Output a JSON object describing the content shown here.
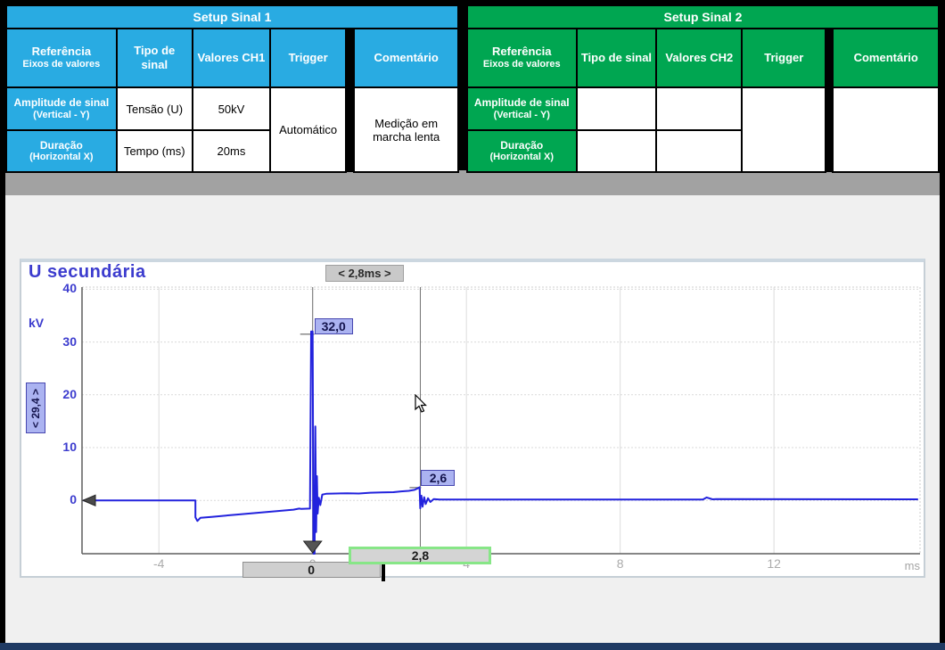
{
  "setup1": {
    "title": "Setup Sinal 1",
    "headers": {
      "ref": "Referência",
      "ref_sub": "Eixos de valores",
      "tipo": "Tipo de sinal",
      "valores": "Valores CH1",
      "trigger": "Trigger",
      "comentario": "Comentário"
    },
    "rows": {
      "amplitude": {
        "label": "Amplitude de sinal",
        "sub": "(Vertical - Y)",
        "tipo": "Tensão (U)",
        "valor": "50kV"
      },
      "duracao": {
        "label": "Duração",
        "sub": "(Horizontal X)",
        "tipo": "Tempo (ms)",
        "valor": "20ms"
      }
    },
    "trigger_value": "Automático",
    "comment_value": "Medição em marcha lenta",
    "accent_color": "#29ABE2"
  },
  "setup2": {
    "title": "Setup Sinal 2",
    "headers": {
      "ref": "Referência",
      "ref_sub": "Eixos de valores",
      "tipo": "Tipo de sinal",
      "valores": "Valores CH2",
      "trigger": "Trigger",
      "comentario": "Comentário"
    },
    "rows": {
      "amplitude": {
        "label": "Amplitude de sinal",
        "sub": "(Vertical - Y)",
        "tipo": "",
        "valor": ""
      },
      "duracao": {
        "label": "Duração",
        "sub": "(Horizontal X)",
        "tipo": "",
        "valor": ""
      }
    },
    "trigger_value": "",
    "comment_value": "",
    "accent_color": "#00A651"
  },
  "chart_data": {
    "type": "line",
    "title": "U secundária",
    "y_unit": "kV",
    "x_unit": "ms",
    "x_range": [
      -6,
      15.8
    ],
    "y_range": [
      -10.1,
      40.4
    ],
    "x_ticks": [
      -4,
      0,
      4,
      8,
      12
    ],
    "x_tick_labels": [
      "-4",
      "0",
      "4",
      "8",
      "12"
    ],
    "y_ticks": [
      40,
      30,
      20,
      10,
      0
    ],
    "y_tick_labels": [
      "40",
      "30",
      "20",
      "10",
      "0"
    ],
    "grid": true,
    "legend": "none",
    "trace_color": "#2222DD",
    "series": [
      {
        "name": "U secundária",
        "points": [
          [
            -5.97,
            0
          ],
          [
            -3.05,
            0
          ],
          [
            -3.05,
            -3.2
          ],
          [
            -3.0,
            -3.9
          ],
          [
            -2.92,
            -3.3
          ],
          [
            -2.6,
            -3.1
          ],
          [
            -2.0,
            -2.7
          ],
          [
            -1.2,
            -2.2
          ],
          [
            -0.5,
            -1.75
          ],
          [
            -0.35,
            -1.55
          ],
          [
            -0.3,
            -1.6
          ],
          [
            -0.07,
            -1.55
          ],
          [
            -0.04,
            32
          ],
          [
            0.0,
            32
          ],
          [
            0.02,
            -10.1
          ],
          [
            0.05,
            -10.1
          ],
          [
            0.07,
            14
          ],
          [
            0.09,
            -6
          ],
          [
            0.11,
            4.6
          ],
          [
            0.13,
            -2.5
          ],
          [
            0.16,
            0.5
          ],
          [
            0.2,
            -0.9
          ],
          [
            0.25,
            1.1
          ],
          [
            0.35,
            1.25
          ],
          [
            0.6,
            1.3
          ],
          [
            0.9,
            1.35
          ],
          [
            1.2,
            1.3
          ],
          [
            1.5,
            1.45
          ],
          [
            1.8,
            1.5
          ],
          [
            2.1,
            1.55
          ],
          [
            2.3,
            1.7
          ],
          [
            2.5,
            1.8
          ],
          [
            2.65,
            2.0
          ],
          [
            2.75,
            2.35
          ],
          [
            2.78,
            2.5
          ],
          [
            2.8,
            -1.5
          ],
          [
            2.83,
            0.9
          ],
          [
            2.86,
            -1.2
          ],
          [
            2.9,
            0.6
          ],
          [
            2.94,
            -0.7
          ],
          [
            3.0,
            0.4
          ],
          [
            3.06,
            -0.3
          ],
          [
            3.15,
            0.25
          ],
          [
            3.3,
            0.15
          ],
          [
            6.0,
            0.15
          ],
          [
            10.15,
            0.15
          ],
          [
            10.25,
            0.55
          ],
          [
            10.4,
            0.2
          ],
          [
            10.5,
            0.25
          ],
          [
            15.75,
            0.2
          ]
        ]
      }
    ],
    "cursors": [
      {
        "x": 0,
        "box_label": "0"
      },
      {
        "x": 2.8,
        "box_label": "2,8"
      }
    ],
    "annotations": {
      "peak_value": "32,0",
      "peak_kv": 32,
      "burn_value": "2,6",
      "burn_kv": 2.6,
      "left_ref_value": "< 29,4 >",
      "timebase_value": "< 2,8ms >"
    },
    "trigger_marker": {
      "x": 0,
      "level_kv": 0
    }
  }
}
